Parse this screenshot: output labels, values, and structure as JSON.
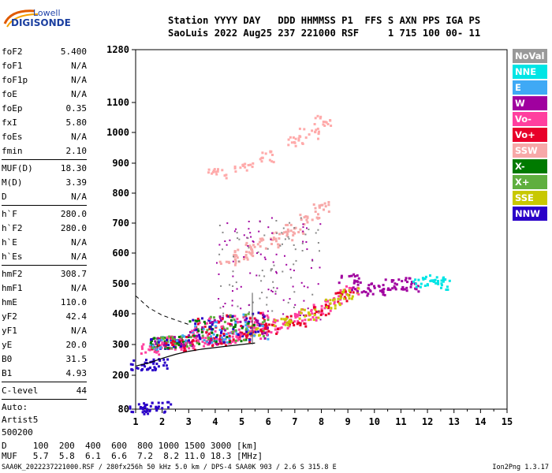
{
  "logo": {
    "line1": "Lowell",
    "line2": "DIGISONDE"
  },
  "header": {
    "line1": "Station YYYY DAY   DDD HHMMSS P1  FFS S AXN PPS IGA PS",
    "line2": "SaoLuis 2022 Aug25 237 221000 RSF     1 715 100 00- 11"
  },
  "params": {
    "group1": [
      {
        "name": "foF2",
        "value": "5.400"
      },
      {
        "name": "foF1",
        "value": "N/A"
      },
      {
        "name": "foF1p",
        "value": "N/A"
      },
      {
        "name": "foE",
        "value": "N/A"
      },
      {
        "name": "foEp",
        "value": "0.35"
      },
      {
        "name": "fxI",
        "value": "5.80"
      },
      {
        "name": "foEs",
        "value": "N/A"
      },
      {
        "name": "fmin",
        "value": "2.10"
      }
    ],
    "group2": [
      {
        "name": "MUF(D)",
        "value": "18.30"
      },
      {
        "name": "M(D)",
        "value": "3.39"
      },
      {
        "name": "D",
        "value": "N/A"
      }
    ],
    "group3": [
      {
        "name": "h`F",
        "value": "280.0"
      },
      {
        "name": "h`F2",
        "value": "280.0"
      },
      {
        "name": "h`E",
        "value": "N/A"
      },
      {
        "name": "h`Es",
        "value": "N/A"
      }
    ],
    "group4": [
      {
        "name": "hmF2",
        "value": "308.7"
      },
      {
        "name": "hmF1",
        "value": "N/A"
      },
      {
        "name": "hmE",
        "value": "110.0"
      },
      {
        "name": "yF2",
        "value": "42.4"
      },
      {
        "name": "yF1",
        "value": "N/A"
      },
      {
        "name": "yE",
        "value": "20.0"
      },
      {
        "name": "B0",
        "value": "31.5"
      },
      {
        "name": "B1",
        "value": "4.93"
      }
    ],
    "clevel": {
      "name": "C-level",
      "value": "44"
    },
    "auto_lines": [
      "Auto:",
      "Artist5",
      "500200"
    ]
  },
  "legend": [
    {
      "label": "NoVal",
      "color": "#999999"
    },
    {
      "label": "NNE",
      "color": "#00e5e5"
    },
    {
      "label": "E",
      "color": "#3fa9f5"
    },
    {
      "label": "W",
      "color": "#a0009f"
    },
    {
      "label": "Vo-",
      "color": "#ff3f9f"
    },
    {
      "label": "Vo+",
      "color": "#e8002a"
    },
    {
      "label": "SSW",
      "color": "#f7a8a8"
    },
    {
      "label": "X-",
      "color": "#007a00"
    },
    {
      "label": "X+",
      "color": "#5faf3f"
    },
    {
      "label": "SSE",
      "color": "#c8c800"
    },
    {
      "label": "NNW",
      "color": "#2a00c8"
    }
  ],
  "chart_data": {
    "type": "scatter",
    "xlabel": "",
    "ylabel": "",
    "xlim": [
      1,
      15
    ],
    "x_ticks": [
      1,
      2,
      3,
      4,
      5,
      6,
      7,
      8,
      9,
      10,
      11,
      12,
      13,
      14,
      15
    ],
    "y_ticks": [
      80,
      200,
      300,
      400,
      500,
      600,
      700,
      800,
      900,
      1000,
      1100,
      1280
    ],
    "y_scale": "nonlinear (ionogram virtual height)",
    "series": [
      {
        "color": "#ff3f9f",
        "points": [
          [
            1.5,
            288
          ],
          [
            2.0,
            295
          ],
          [
            2.5,
            300
          ],
          [
            3.0,
            305
          ],
          [
            3.5,
            310
          ],
          [
            4.0,
            318
          ],
          [
            4.5,
            325
          ],
          [
            5.0,
            335
          ],
          [
            5.5,
            348
          ],
          [
            6.0,
            360
          ],
          [
            6.5,
            372
          ],
          [
            7.0,
            385
          ],
          [
            7.5,
            400
          ],
          [
            8.0,
            420
          ],
          [
            8.5,
            445
          ],
          [
            9.0,
            480
          ]
        ]
      },
      {
        "color": "#e8002a",
        "points": [
          [
            3.0,
            300
          ],
          [
            4.0,
            315
          ],
          [
            5.0,
            330
          ],
          [
            6.0,
            355
          ],
          [
            7.0,
            380
          ],
          [
            8.0,
            415
          ],
          [
            8.8,
            460
          ]
        ]
      },
      {
        "color": "#c8c800",
        "points": [
          [
            5.5,
            350
          ],
          [
            6.5,
            375
          ],
          [
            7.5,
            400
          ],
          [
            8.5,
            440
          ],
          [
            9.0,
            470
          ]
        ]
      },
      {
        "color": "#a0009f",
        "points": [
          [
            10.0,
            480
          ],
          [
            10.5,
            500
          ],
          [
            11.0,
            505
          ],
          [
            11.3,
            495
          ],
          [
            9.5,
            490
          ],
          [
            9.0,
            520
          ]
        ]
      },
      {
        "color": "#00e5e5",
        "points": [
          [
            11.8,
            505
          ],
          [
            12.2,
            515
          ],
          [
            12.5,
            500
          ]
        ]
      },
      {
        "color": "#f7a8a8",
        "points": [
          [
            4.5,
            580
          ],
          [
            5.0,
            600
          ],
          [
            5.5,
            620
          ],
          [
            6.0,
            640
          ],
          [
            6.5,
            660
          ],
          [
            7.0,
            680
          ],
          [
            7.5,
            715
          ],
          [
            8.0,
            760
          ]
        ]
      },
      {
        "color": "#ffaaaa",
        "points": [
          [
            4.0,
            870
          ],
          [
            5.0,
            890
          ],
          [
            6.0,
            925
          ],
          [
            7.0,
            970
          ],
          [
            7.5,
            1000
          ],
          [
            8.0,
            1040
          ]
        ]
      },
      {
        "color": "#2a00c8",
        "points": [
          [
            1.1,
            85
          ],
          [
            1.5,
            88
          ],
          [
            1.9,
            90
          ]
        ]
      },
      {
        "color": "#2a00c8",
        "points": [
          [
            1.1,
            236
          ],
          [
            1.5,
            238
          ],
          [
            1.9,
            240
          ]
        ]
      }
    ],
    "trace_x": [
      1.0,
      1.5,
      2.0,
      2.5,
      3.0,
      3.5,
      4.0,
      4.5,
      5.0,
      5.5
    ],
    "trace_y": [
      230,
      240,
      255,
      268,
      278,
      285,
      290,
      295,
      300,
      305
    ]
  },
  "bottom": {
    "line1": "D     100  200  400  600  800 1000 1500 3000 [km]",
    "line2": "MUF   5.7  5.8  6.1  6.6  7.2  8.2 11.0 18.3 [MHz]",
    "line3": "SAA0K_2022237221000.RSF / 280fx256h 50 kHz 5.0 km / DPS-4 SAA0K 903 / 2.6 S 315.8 E",
    "version": "Ion2Png 1.3.17"
  }
}
